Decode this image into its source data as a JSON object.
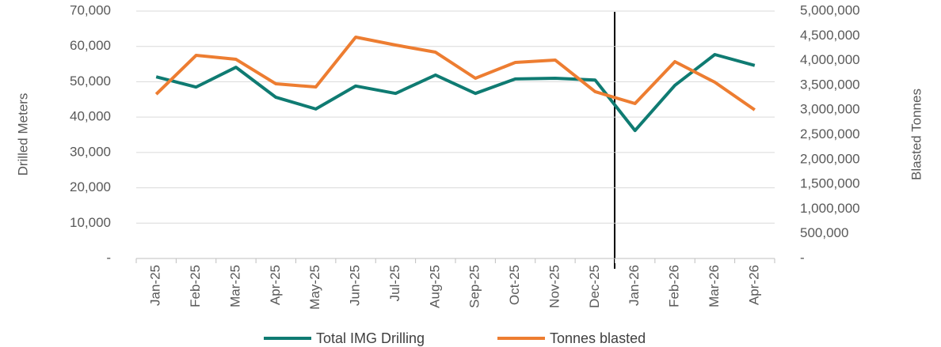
{
  "chart_data": {
    "type": "line",
    "y_label": "Drilled Meters",
    "y2_label": "Blasted Tonnes",
    "categories": [
      "Jan-25",
      "Feb-25",
      "Mar-25",
      "Apr-25",
      "May-25",
      "Jun-25",
      "Jul-25",
      "Aug-25",
      "Sep-25",
      "Oct-25",
      "Nov-25",
      "Dec-25",
      "Jan-26",
      "Feb-26",
      "Mar-26",
      "Apr-26"
    ],
    "series": [
      {
        "name": "Total IMG Drilling",
        "color": "#0f7b72",
        "values": [
          51400,
          48500,
          54100,
          45600,
          42300,
          48800,
          46700,
          51900,
          46700,
          50800,
          51000,
          50500,
          36200,
          49000,
          57700,
          54600
        ]
      },
      {
        "name": "Tonnes blasted",
        "color": "#ed7d31",
        "axis": "y2",
        "values": [
          3320000,
          4105000,
          4025000,
          3530000,
          3466000,
          4473000,
          4313000,
          4169000,
          3642000,
          3962000,
          4010000,
          3371000,
          3131000,
          3978000,
          3562000,
          3003000
        ]
      }
    ],
    "ylim": [
      0,
      70000
    ],
    "yticks": [
      {
        "value": 0,
        "label": "-"
      },
      {
        "value": 10000,
        "label": "10,000"
      },
      {
        "value": 20000,
        "label": "20,000"
      },
      {
        "value": 30000,
        "label": "30,000"
      },
      {
        "value": 40000,
        "label": "40,000"
      },
      {
        "value": 50000,
        "label": "50,000"
      },
      {
        "value": 60000,
        "label": "60,000"
      },
      {
        "value": 70000,
        "label": "70,000"
      }
    ],
    "y2lim": [
      0,
      5000000
    ],
    "y2ticks": [
      {
        "value": 0,
        "label": "-"
      },
      {
        "value": 500000,
        "label": "500,000"
      },
      {
        "value": 1000000,
        "label": "1,000,000"
      },
      {
        "value": 1500000,
        "label": "1,500,000"
      },
      {
        "value": 2000000,
        "label": "2,000,000"
      },
      {
        "value": 2500000,
        "label": "2,500,000"
      },
      {
        "value": 3000000,
        "label": "3,000,000"
      },
      {
        "value": 3500000,
        "label": "3,500,000"
      },
      {
        "value": 4000000,
        "label": "4,000,000"
      },
      {
        "value": 4500000,
        "label": "4,500,000"
      },
      {
        "value": 5000000,
        "label": "5,000,000"
      }
    ],
    "grid": true,
    "legend": "bottom"
  }
}
